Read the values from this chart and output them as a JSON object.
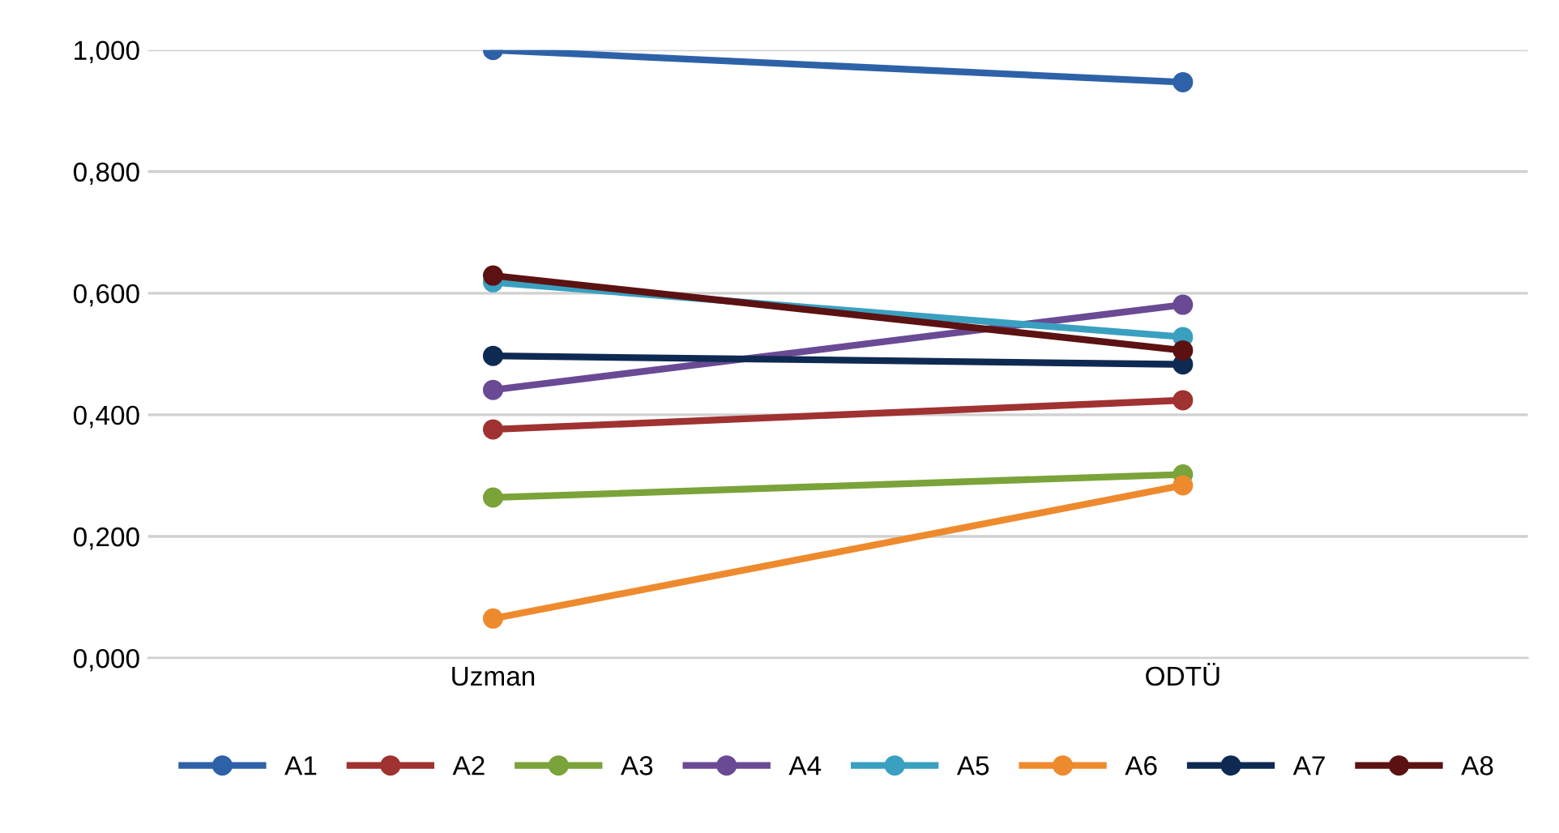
{
  "chart_data": {
    "type": "line",
    "categories": [
      "Uzman",
      "ODTÜ"
    ],
    "series": [
      {
        "name": "A1",
        "color": "#2e62a8",
        "values": [
          1.0,
          0.947
        ]
      },
      {
        "name": "A2",
        "color": "#a03232",
        "values": [
          0.376,
          0.424
        ]
      },
      {
        "name": "A3",
        "color": "#7aa33a",
        "values": [
          0.264,
          0.302
        ]
      },
      {
        "name": "A4",
        "color": "#6a4a94",
        "values": [
          0.441,
          0.581
        ]
      },
      {
        "name": "A5",
        "color": "#3aa0c0",
        "values": [
          0.618,
          0.528
        ]
      },
      {
        "name": "A6",
        "color": "#ee8a2e",
        "values": [
          0.065,
          0.284
        ]
      },
      {
        "name": "A7",
        "color": "#0f2a52",
        "values": [
          0.497,
          0.483
        ]
      },
      {
        "name": "A8",
        "color": "#5c1212",
        "values": [
          0.629,
          0.506
        ]
      }
    ],
    "ylim": [
      0,
      1.0
    ],
    "yticks": [
      {
        "value": 0,
        "label": "0,000"
      },
      {
        "value": 0.2,
        "label": "0,200"
      },
      {
        "value": 0.4,
        "label": "0,400"
      },
      {
        "value": 0.6,
        "label": "0,600"
      },
      {
        "value": 0.8,
        "label": "0,800"
      },
      {
        "value": 1.0,
        "label": "1,000"
      }
    ],
    "grid": "y",
    "legend": "bottom",
    "marker": "circle",
    "line_style": "solid"
  }
}
